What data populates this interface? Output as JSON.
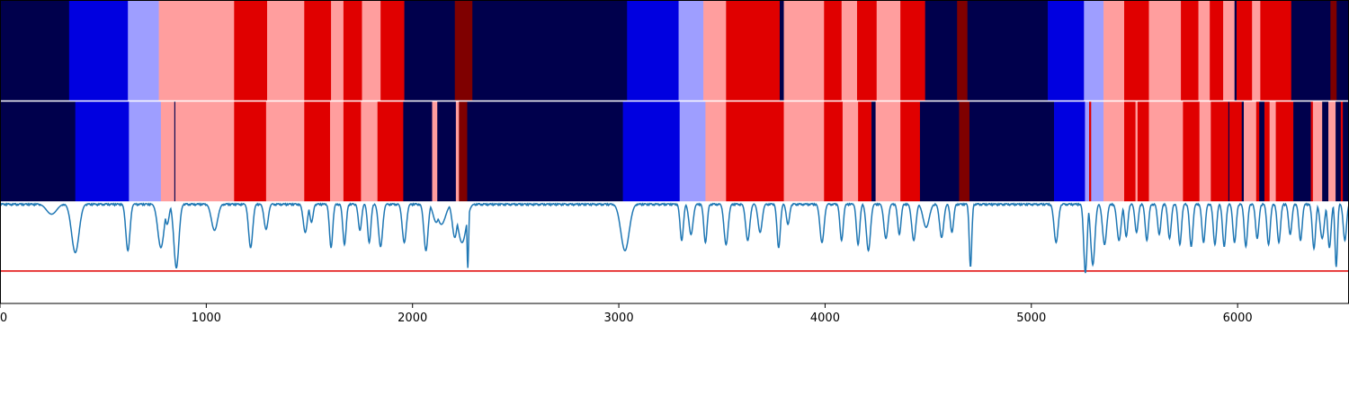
{
  "chart_data": {
    "type": "segmentation-comparison",
    "xlim": [
      0,
      6540
    ],
    "x_ticks": [
      0,
      1000,
      2000,
      3000,
      4000,
      5000,
      6000
    ],
    "x_tick_labels": [
      "0",
      "1000",
      "2000",
      "3000",
      "4000",
      "5000",
      "6000"
    ],
    "palette": {
      "a": "#00004c",
      "b": "#0000e0",
      "c": "#9e9eff",
      "d": "#ff9e9e",
      "e": "#e00000",
      "f": "#7f0000"
    },
    "segment_rows": [
      {
        "segments": [
          [
            0,
            335,
            "a"
          ],
          [
            335,
            620,
            "b"
          ],
          [
            620,
            770,
            "c"
          ],
          [
            770,
            1135,
            "d"
          ],
          [
            1135,
            1295,
            "e"
          ],
          [
            1295,
            1475,
            "d"
          ],
          [
            1475,
            1605,
            "e"
          ],
          [
            1605,
            1665,
            "d"
          ],
          [
            1665,
            1755,
            "e"
          ],
          [
            1755,
            1845,
            "d"
          ],
          [
            1845,
            1960,
            "e"
          ],
          [
            1960,
            2205,
            "a"
          ],
          [
            2205,
            2290,
            "f"
          ],
          [
            2290,
            3040,
            "a"
          ],
          [
            3040,
            3290,
            "b"
          ],
          [
            3290,
            3410,
            "c"
          ],
          [
            3410,
            3520,
            "d"
          ],
          [
            3520,
            3780,
            "e"
          ],
          [
            3780,
            3800,
            "a"
          ],
          [
            3800,
            3995,
            "d"
          ],
          [
            3995,
            4080,
            "e"
          ],
          [
            4080,
            4155,
            "d"
          ],
          [
            4155,
            4250,
            "e"
          ],
          [
            4250,
            4365,
            "d"
          ],
          [
            4365,
            4485,
            "e"
          ],
          [
            4485,
            4640,
            "a"
          ],
          [
            4640,
            4690,
            "f"
          ],
          [
            4690,
            5080,
            "a"
          ],
          [
            5080,
            5255,
            "b"
          ],
          [
            5255,
            5350,
            "c"
          ],
          [
            5350,
            5450,
            "d"
          ],
          [
            5450,
            5570,
            "e"
          ],
          [
            5570,
            5725,
            "d"
          ],
          [
            5725,
            5810,
            "e"
          ],
          [
            5810,
            5865,
            "d"
          ],
          [
            5865,
            5930,
            "e"
          ],
          [
            5930,
            5985,
            "d"
          ],
          [
            5985,
            5995,
            "a"
          ],
          [
            5995,
            6070,
            "e"
          ],
          [
            6070,
            6110,
            "d"
          ],
          [
            6110,
            6260,
            "e"
          ],
          [
            6260,
            6450,
            "a"
          ],
          [
            6450,
            6480,
            "f"
          ],
          [
            6480,
            6540,
            "a"
          ]
        ]
      },
      {
        "segments": [
          [
            0,
            365,
            "a"
          ],
          [
            365,
            625,
            "b"
          ],
          [
            625,
            780,
            "c"
          ],
          [
            780,
            845,
            "d"
          ],
          [
            845,
            850,
            "a"
          ],
          [
            850,
            1135,
            "d"
          ],
          [
            1135,
            1290,
            "e"
          ],
          [
            1290,
            1475,
            "d"
          ],
          [
            1475,
            1600,
            "e"
          ],
          [
            1600,
            1665,
            "d"
          ],
          [
            1665,
            1750,
            "e"
          ],
          [
            1750,
            1830,
            "d"
          ],
          [
            1830,
            1955,
            "e"
          ],
          [
            1955,
            2095,
            "a"
          ],
          [
            2095,
            2120,
            "d"
          ],
          [
            2120,
            2210,
            "a"
          ],
          [
            2210,
            2225,
            "d"
          ],
          [
            2225,
            2265,
            "f"
          ],
          [
            2265,
            3020,
            "a"
          ],
          [
            3020,
            3295,
            "b"
          ],
          [
            3295,
            3420,
            "c"
          ],
          [
            3420,
            3520,
            "d"
          ],
          [
            3520,
            3800,
            "e"
          ],
          [
            3800,
            3995,
            "d"
          ],
          [
            3995,
            4085,
            "e"
          ],
          [
            4085,
            4160,
            "d"
          ],
          [
            4160,
            4225,
            "e"
          ],
          [
            4225,
            4245,
            "a"
          ],
          [
            4245,
            4365,
            "d"
          ],
          [
            4365,
            4460,
            "e"
          ],
          [
            4460,
            4650,
            "a"
          ],
          [
            4650,
            4700,
            "f"
          ],
          [
            4700,
            5110,
            "a"
          ],
          [
            5110,
            5260,
            "b"
          ],
          [
            5260,
            5280,
            "c"
          ],
          [
            5280,
            5290,
            "e"
          ],
          [
            5290,
            5350,
            "c"
          ],
          [
            5350,
            5450,
            "d"
          ],
          [
            5450,
            5505,
            "e"
          ],
          [
            5505,
            5515,
            "d"
          ],
          [
            5515,
            5570,
            "e"
          ],
          [
            5570,
            5735,
            "d"
          ],
          [
            5735,
            5815,
            "e"
          ],
          [
            5815,
            5870,
            "d"
          ],
          [
            5870,
            5955,
            "e"
          ],
          [
            5955,
            5960,
            "a"
          ],
          [
            5960,
            6020,
            "e"
          ],
          [
            6020,
            6030,
            "a"
          ],
          [
            6030,
            6090,
            "d"
          ],
          [
            6090,
            6105,
            "e"
          ],
          [
            6105,
            6130,
            "a"
          ],
          [
            6130,
            6155,
            "e"
          ],
          [
            6155,
            6185,
            "d"
          ],
          [
            6185,
            6270,
            "e"
          ],
          [
            6270,
            6355,
            "a"
          ],
          [
            6355,
            6365,
            "e"
          ],
          [
            6365,
            6410,
            "d"
          ],
          [
            6410,
            6440,
            "a"
          ],
          [
            6440,
            6475,
            "d"
          ],
          [
            6475,
            6500,
            "a"
          ],
          [
            6500,
            6510,
            "e"
          ],
          [
            6510,
            6540,
            "a"
          ]
        ]
      }
    ],
    "signal": {
      "ylim": [
        0,
        1
      ],
      "threshold": 0.32,
      "line_color": "#1f77b4",
      "threshold_color": "#e00000",
      "baseline": 0.985,
      "dips": [
        [
          250,
          25,
          0.88
        ],
        [
          365,
          18,
          0.5
        ],
        [
          620,
          10,
          0.52
        ],
        [
          780,
          15,
          0.55
        ],
        [
          810,
          10,
          0.78
        ],
        [
          855,
          12,
          0.35
        ],
        [
          1040,
          15,
          0.72
        ],
        [
          1215,
          10,
          0.55
        ],
        [
          1290,
          10,
          0.73
        ],
        [
          1480,
          10,
          0.7
        ],
        [
          1510,
          8,
          0.8
        ],
        [
          1605,
          8,
          0.55
        ],
        [
          1670,
          8,
          0.58
        ],
        [
          1745,
          8,
          0.72
        ],
        [
          1790,
          8,
          0.6
        ],
        [
          1845,
          10,
          0.56
        ],
        [
          1960,
          10,
          0.6
        ],
        [
          2065,
          10,
          0.52
        ],
        [
          2115,
          15,
          0.8
        ],
        [
          2140,
          20,
          0.78
        ],
        [
          2205,
          12,
          0.65
        ],
        [
          2240,
          20,
          0.6
        ],
        [
          2268,
          4,
          0.35
        ],
        [
          3030,
          20,
          0.52
        ],
        [
          3305,
          8,
          0.62
        ],
        [
          3350,
          10,
          0.68
        ],
        [
          3420,
          8,
          0.6
        ],
        [
          3520,
          10,
          0.58
        ],
        [
          3625,
          10,
          0.62
        ],
        [
          3685,
          10,
          0.7
        ],
        [
          3775,
          8,
          0.55
        ],
        [
          3820,
          8,
          0.78
        ],
        [
          3985,
          10,
          0.6
        ],
        [
          4080,
          8,
          0.62
        ],
        [
          4160,
          8,
          0.58
        ],
        [
          4210,
          10,
          0.52
        ],
        [
          4295,
          10,
          0.64
        ],
        [
          4360,
          8,
          0.68
        ],
        [
          4430,
          10,
          0.62
        ],
        [
          4490,
          15,
          0.75
        ],
        [
          4565,
          10,
          0.65
        ],
        [
          4615,
          8,
          0.7
        ],
        [
          4705,
          6,
          0.36
        ],
        [
          5120,
          10,
          0.6
        ],
        [
          5262,
          8,
          0.3
        ],
        [
          5298,
          10,
          0.38
        ],
        [
          5355,
          10,
          0.58
        ],
        [
          5425,
          10,
          0.62
        ],
        [
          5460,
          8,
          0.66
        ],
        [
          5510,
          8,
          0.7
        ],
        [
          5560,
          8,
          0.62
        ],
        [
          5620,
          8,
          0.68
        ],
        [
          5670,
          8,
          0.64
        ],
        [
          5720,
          8,
          0.58
        ],
        [
          5775,
          8,
          0.56
        ],
        [
          5835,
          8,
          0.6
        ],
        [
          5890,
          8,
          0.58
        ],
        [
          5935,
          8,
          0.56
        ],
        [
          5985,
          8,
          0.6
        ],
        [
          6040,
          8,
          0.56
        ],
        [
          6095,
          8,
          0.64
        ],
        [
          6150,
          8,
          0.58
        ],
        [
          6200,
          8,
          0.6
        ],
        [
          6255,
          8,
          0.68
        ],
        [
          6305,
          8,
          0.62
        ],
        [
          6370,
          8,
          0.54
        ],
        [
          6410,
          10,
          0.64
        ],
        [
          6445,
          8,
          0.55
        ],
        [
          6478,
          6,
          0.36
        ],
        [
          6520,
          8,
          0.62
        ]
      ]
    }
  }
}
